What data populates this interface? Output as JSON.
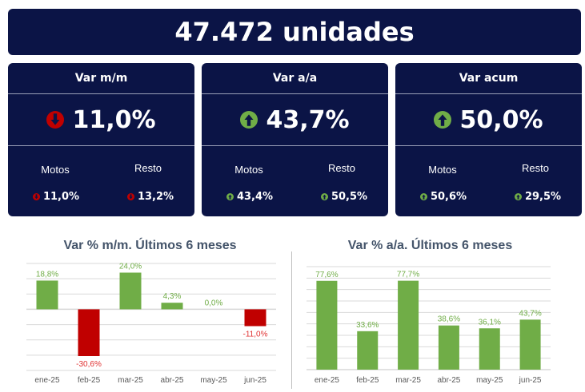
{
  "header": {
    "title": "47.472 unidades"
  },
  "cards": [
    {
      "title": "Var m/m",
      "value": "11,0%",
      "trend": "down",
      "motos_label": "Motos",
      "motos_value": "11,0%",
      "motos_trend": "down",
      "resto_label": "Resto",
      "resto_value": "13,2%",
      "resto_trend": "down"
    },
    {
      "title": "Var a/a",
      "value": "43,7%",
      "trend": "up",
      "motos_label": "Motos",
      "motos_value": "43,4%",
      "motos_trend": "up",
      "resto_label": "Resto",
      "resto_value": "50,5%",
      "resto_trend": "up"
    },
    {
      "title": "Var acum",
      "value": "50,0%",
      "trend": "up",
      "motos_label": "Motos",
      "motos_value": "50,6%",
      "motos_trend": "up",
      "resto_label": "Resto",
      "resto_value": "29,5%",
      "resto_trend": "up"
    }
  ],
  "colors": {
    "navy": "#0b1446",
    "positive": "#70ad47",
    "negative": "#c00000",
    "title_text": "#44546a"
  },
  "chart_data": [
    {
      "type": "bar",
      "title": "Var % m/m. Últimos 6 meses",
      "categories": [
        "ene-25",
        "feb-25",
        "mar-25",
        "abr-25",
        "may-25",
        "jun-25"
      ],
      "values": [
        18.8,
        -30.6,
        24.0,
        4.3,
        0.0,
        -11.0
      ],
      "labels": [
        "18,8%",
        "-30,6%",
        "24,0%",
        "4,3%",
        "0,0%",
        "-11,0%"
      ],
      "ylim": [
        -40,
        30
      ],
      "grid": true,
      "xlabel": "",
      "ylabel": ""
    },
    {
      "type": "bar",
      "title": "Var % a/a. Últimos 6 meses",
      "categories": [
        "ene-25",
        "feb-25",
        "mar-25",
        "abr-25",
        "may-25",
        "jun-25"
      ],
      "values": [
        77.6,
        33.6,
        77.7,
        38.6,
        36.1,
        43.7
      ],
      "labels": [
        "77,6%",
        "33,6%",
        "77,7%",
        "38,6%",
        "36,1%",
        "43,7%"
      ],
      "ylim": [
        0,
        90
      ],
      "grid": true,
      "xlabel": "",
      "ylabel": ""
    }
  ]
}
